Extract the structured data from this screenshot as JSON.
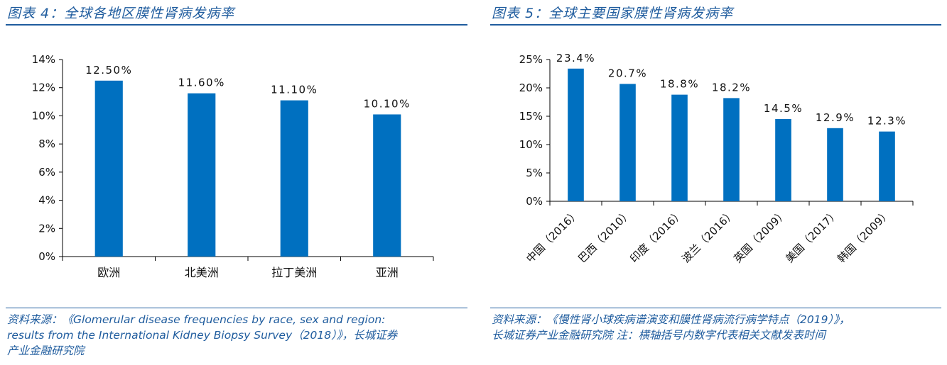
{
  "left": {
    "title": "图表 4：全球各地区膜性肾病发病率",
    "source_lines": [
      "资料来源：《Glomerular disease frequencies by race, sex and region:",
      "results from the International Kidney Biopsy Survey（2018）》，长城证券",
      "产业金融研究院"
    ],
    "chart_data": {
      "type": "bar",
      "categories": [
        "欧洲",
        "北美洲",
        "拉丁美洲",
        "亚洲"
      ],
      "values": [
        12.5,
        11.6,
        11.1,
        10.1
      ],
      "data_labels": [
        "12.50%",
        "11.60%",
        "11.10%",
        "10.10%"
      ],
      "ylim": [
        0,
        14
      ],
      "yticks": [
        "0%",
        "2%",
        "4%",
        "6%",
        "8%",
        "10%",
        "12%",
        "14%"
      ],
      "color": "#0070c0",
      "grid": false
    }
  },
  "right": {
    "title": "图表 5：全球主要国家膜性肾病发病率",
    "source_lines": [
      "资料来源：《慢性肾小球疾病谱演变和膜性肾病流行病学特点（2019）》，",
      "长城证券产业金融研究院 注：横轴括号内数字代表相关文献发表时间"
    ],
    "chart_data": {
      "type": "bar",
      "categories": [
        "中国（2016）",
        "巴西（2010）",
        "印度（2016）",
        "波兰（2016）",
        "英国（2009）",
        "美国（2017）",
        "韩国（2009）"
      ],
      "values": [
        23.4,
        20.7,
        18.8,
        18.2,
        14.5,
        12.9,
        12.3
      ],
      "data_labels": [
        "23.4%",
        "20.7%",
        "18.8%",
        "18.2%",
        "14.5%",
        "12.9%",
        "12.3%"
      ],
      "ylim": [
        0,
        25
      ],
      "yticks": [
        "0%",
        "5%",
        "10%",
        "15%",
        "20%",
        "25%"
      ],
      "color": "#0070c0",
      "grid": false
    }
  }
}
